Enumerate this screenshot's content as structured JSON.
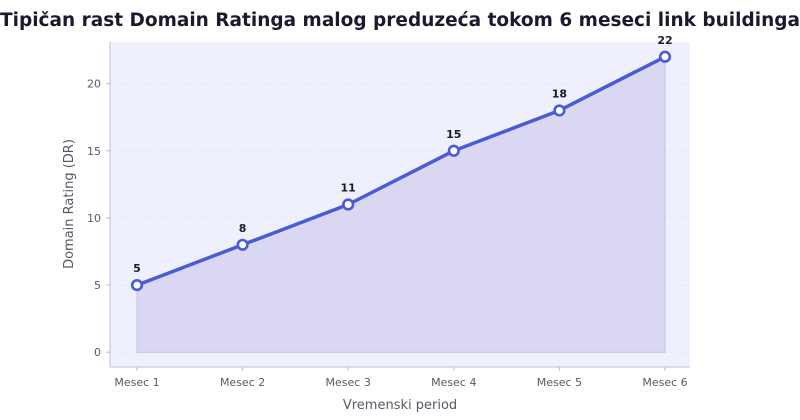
{
  "chart_data": {
    "type": "area",
    "title": "Tipičan rast Domain Ratinga malog preduzeća tokom 6 meseci link buildinga",
    "xlabel": "Vremenski period",
    "ylabel": "Domain Rating (DR)",
    "categories": [
      "Mesec 1",
      "Mesec 2",
      "Mesec 3",
      "Mesec 4",
      "Mesec 5",
      "Mesec 6"
    ],
    "series": [
      {
        "values": [
          5,
          8,
          11,
          15,
          18,
          22
        ]
      }
    ],
    "data_labels": [
      "5",
      "8",
      "11",
      "15",
      "18",
      "22"
    ],
    "yticks": [
      0,
      5,
      10,
      15,
      20
    ],
    "ytick_labels": [
      "0",
      "5",
      "10",
      "15",
      "20"
    ],
    "ylim": [
      -1.1,
      23.1
    ],
    "grid": true,
    "legend": "none",
    "colors": {
      "line": "#4a5bd6",
      "fill": "#d8d5f2",
      "plot_background": "#eef1fd",
      "grid": "#dfe3f5",
      "axis": "#b9bfd9",
      "marker_fill": "#ffffff"
    }
  }
}
